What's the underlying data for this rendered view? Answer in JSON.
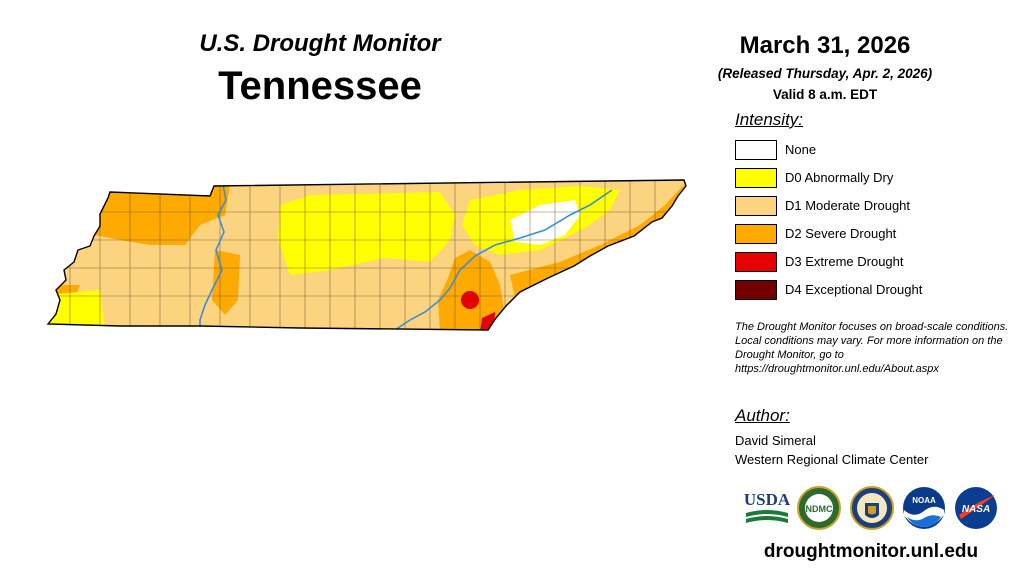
{
  "header": {
    "subtitle": "U.S. Drought Monitor",
    "title": "Tennessee"
  },
  "info": {
    "date": "March 31, 2026",
    "released": "(Released Thursday, Apr. 2, 2026)",
    "valid": "Valid 8 a.m. EDT"
  },
  "legend": {
    "label": "Intensity:",
    "items": [
      {
        "label": "None",
        "color": "#ffffff"
      },
      {
        "label": "D0 Abnormally Dry",
        "color": "#ffff00"
      },
      {
        "label": "D1 Moderate Drought",
        "color": "#fcd37f"
      },
      {
        "label": "D2 Severe Drought",
        "color": "#ffaa00"
      },
      {
        "label": "D3 Extreme Drought",
        "color": "#e60000"
      },
      {
        "label": "D4 Exceptional Drought",
        "color": "#730000"
      }
    ]
  },
  "note": "The Drought Monitor focuses on broad-scale conditions. Local conditions may vary. For more information on the Drought Monitor, go to https://droughtmonitor.unl.edu/About.aspx",
  "author": {
    "label": "Author:",
    "name": "David Simeral",
    "org": "Western Regional Climate Center"
  },
  "logos": {
    "usda": "USDA",
    "ndmc": "NDMC",
    "noaa": "NOAA",
    "nasa": "NASA"
  },
  "footer_url": "droughtmonitor.unl.edu"
}
